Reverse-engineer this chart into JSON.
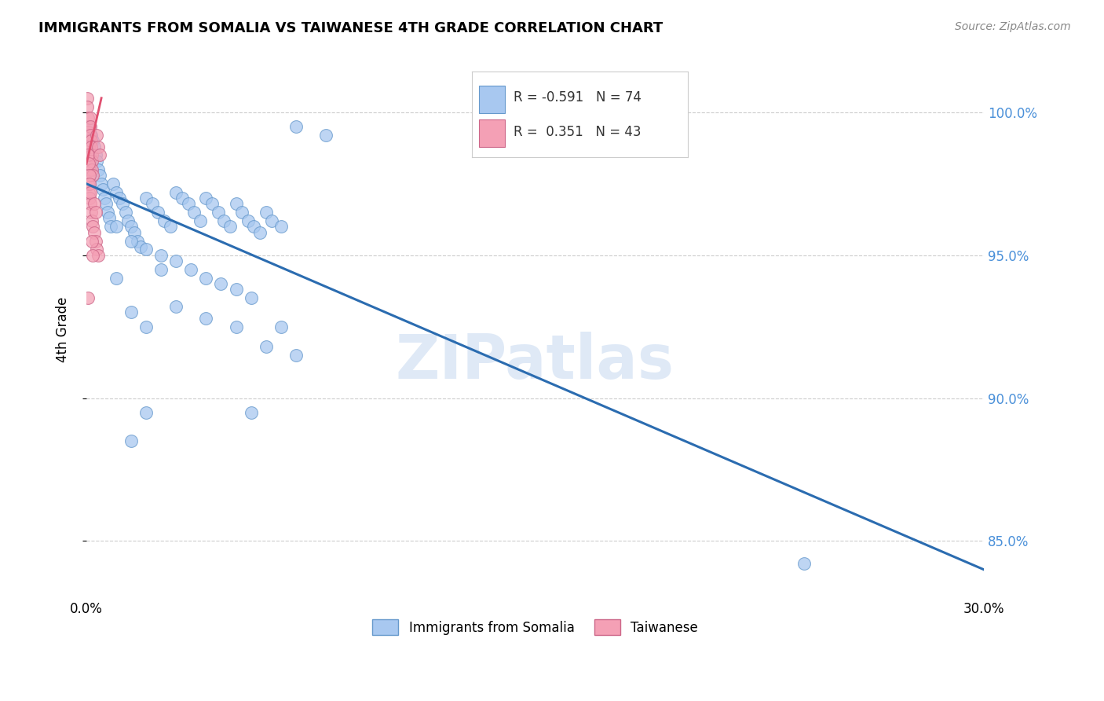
{
  "title": "IMMIGRANTS FROM SOMALIA VS TAIWANESE 4TH GRADE CORRELATION CHART",
  "source": "Source: ZipAtlas.com",
  "ylabel": "4th Grade",
  "xlim": [
    0.0,
    30.0
  ],
  "ylim": [
    83.0,
    101.8
  ],
  "yticks": [
    85.0,
    90.0,
    95.0,
    100.0
  ],
  "ytick_labels": [
    "85.0%",
    "90.0%",
    "95.0%",
    "100.0%"
  ],
  "xtick_positions": [
    0.0,
    7.5,
    15.0,
    22.5,
    30.0
  ],
  "blue_R": "-0.591",
  "blue_N": "74",
  "pink_R": "0.351",
  "pink_N": "43",
  "blue_color": "#a8c8f0",
  "pink_color": "#f4a0b5",
  "trend_blue_color": "#2b6cb0",
  "trend_pink_color": "#e05070",
  "legend_blue_label": "Immigrants from Somalia",
  "legend_pink_label": "Taiwanese",
  "watermark": "ZIPatlas",
  "blue_points": [
    [
      0.1,
      99.5
    ],
    [
      0.15,
      99.2
    ],
    [
      0.2,
      99.0
    ],
    [
      0.25,
      98.8
    ],
    [
      0.3,
      98.5
    ],
    [
      0.35,
      98.3
    ],
    [
      0.4,
      98.0
    ],
    [
      0.45,
      97.8
    ],
    [
      0.5,
      97.5
    ],
    [
      0.55,
      97.3
    ],
    [
      0.6,
      97.0
    ],
    [
      0.65,
      96.8
    ],
    [
      0.7,
      96.5
    ],
    [
      0.75,
      96.3
    ],
    [
      0.8,
      96.0
    ],
    [
      0.9,
      97.5
    ],
    [
      1.0,
      97.2
    ],
    [
      1.1,
      97.0
    ],
    [
      1.2,
      96.8
    ],
    [
      1.3,
      96.5
    ],
    [
      1.4,
      96.2
    ],
    [
      1.5,
      96.0
    ],
    [
      1.6,
      95.8
    ],
    [
      1.7,
      95.5
    ],
    [
      1.8,
      95.3
    ],
    [
      2.0,
      97.0
    ],
    [
      2.2,
      96.8
    ],
    [
      2.4,
      96.5
    ],
    [
      2.6,
      96.2
    ],
    [
      2.8,
      96.0
    ],
    [
      3.0,
      97.2
    ],
    [
      3.2,
      97.0
    ],
    [
      3.4,
      96.8
    ],
    [
      3.6,
      96.5
    ],
    [
      3.8,
      96.2
    ],
    [
      4.0,
      97.0
    ],
    [
      4.2,
      96.8
    ],
    [
      4.4,
      96.5
    ],
    [
      4.6,
      96.2
    ],
    [
      4.8,
      96.0
    ],
    [
      5.0,
      96.8
    ],
    [
      5.2,
      96.5
    ],
    [
      5.4,
      96.2
    ],
    [
      5.6,
      96.0
    ],
    [
      5.8,
      95.8
    ],
    [
      6.0,
      96.5
    ],
    [
      6.2,
      96.2
    ],
    [
      6.5,
      96.0
    ],
    [
      7.0,
      99.5
    ],
    [
      8.0,
      99.2
    ],
    [
      1.0,
      96.0
    ],
    [
      1.5,
      95.5
    ],
    [
      2.0,
      95.2
    ],
    [
      2.5,
      95.0
    ],
    [
      3.0,
      94.8
    ],
    [
      3.5,
      94.5
    ],
    [
      4.0,
      94.2
    ],
    [
      4.5,
      94.0
    ],
    [
      5.0,
      93.8
    ],
    [
      5.5,
      93.5
    ],
    [
      1.5,
      93.0
    ],
    [
      2.0,
      92.5
    ],
    [
      3.0,
      93.2
    ],
    [
      4.0,
      92.8
    ],
    [
      2.5,
      94.5
    ],
    [
      1.0,
      94.2
    ],
    [
      5.0,
      92.5
    ],
    [
      6.0,
      91.8
    ],
    [
      7.0,
      91.5
    ],
    [
      2.0,
      89.5
    ],
    [
      1.5,
      88.5
    ],
    [
      5.5,
      89.5
    ],
    [
      24.0,
      84.2
    ],
    [
      6.5,
      92.5
    ]
  ],
  "pink_points": [
    [
      0.02,
      100.5
    ],
    [
      0.03,
      100.2
    ],
    [
      0.04,
      99.8
    ],
    [
      0.05,
      99.5
    ],
    [
      0.06,
      99.3
    ],
    [
      0.07,
      99.0
    ],
    [
      0.08,
      98.8
    ],
    [
      0.09,
      98.5
    ],
    [
      0.1,
      98.3
    ],
    [
      0.11,
      98.0
    ],
    [
      0.12,
      99.8
    ],
    [
      0.13,
      99.5
    ],
    [
      0.14,
      99.2
    ],
    [
      0.15,
      99.0
    ],
    [
      0.16,
      98.8
    ],
    [
      0.17,
      98.5
    ],
    [
      0.18,
      98.3
    ],
    [
      0.19,
      98.0
    ],
    [
      0.2,
      97.8
    ],
    [
      0.05,
      97.5
    ],
    [
      0.08,
      97.2
    ],
    [
      0.1,
      97.0
    ],
    [
      0.12,
      96.8
    ],
    [
      0.15,
      96.5
    ],
    [
      0.18,
      96.2
    ],
    [
      0.2,
      96.0
    ],
    [
      0.25,
      95.8
    ],
    [
      0.3,
      95.5
    ],
    [
      0.35,
      95.2
    ],
    [
      0.4,
      95.0
    ],
    [
      0.05,
      98.5
    ],
    [
      0.07,
      98.2
    ],
    [
      0.09,
      97.8
    ],
    [
      0.11,
      97.5
    ],
    [
      0.13,
      97.2
    ],
    [
      0.25,
      96.8
    ],
    [
      0.3,
      96.5
    ],
    [
      0.35,
      99.2
    ],
    [
      0.4,
      98.8
    ],
    [
      0.45,
      98.5
    ],
    [
      0.18,
      95.5
    ],
    [
      0.22,
      95.0
    ],
    [
      0.05,
      93.5
    ]
  ],
  "blue_trend_x": [
    0.0,
    30.0
  ],
  "blue_trend_y": [
    97.5,
    84.0
  ],
  "pink_trend_x": [
    0.0,
    0.5
  ],
  "pink_trend_y": [
    98.2,
    100.5
  ]
}
